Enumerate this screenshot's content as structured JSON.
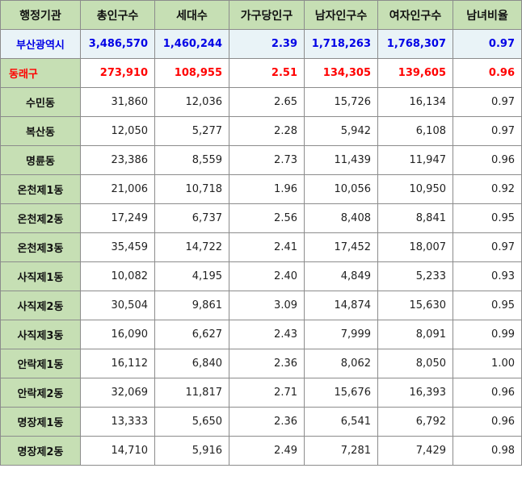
{
  "headers": [
    "행정기관",
    "총인구수",
    "세대수",
    "가구당인구",
    "남자인구수",
    "여자인구수",
    "남녀비율"
  ],
  "rows": [
    [
      "부산광역시",
      "3,486,570",
      "1,460,244",
      "2.39",
      "1,718,263",
      "1,768,307",
      "0.97"
    ],
    [
      "동래구",
      "273,910",
      "108,955",
      "2.51",
      "134,305",
      "139,605",
      "0.96"
    ],
    [
      "수민동",
      "31,860",
      "12,036",
      "2.65",
      "15,726",
      "16,134",
      "0.97"
    ],
    [
      "복산동",
      "12,050",
      "5,277",
      "2.28",
      "5,942",
      "6,108",
      "0.97"
    ],
    [
      "명륜동",
      "23,386",
      "8,559",
      "2.73",
      "11,439",
      "11,947",
      "0.96"
    ],
    [
      "온천제1동",
      "21,006",
      "10,718",
      "1.96",
      "10,056",
      "10,950",
      "0.92"
    ],
    [
      "온천제2동",
      "17,249",
      "6,737",
      "2.56",
      "8,408",
      "8,841",
      "0.95"
    ],
    [
      "온천제3동",
      "35,459",
      "14,722",
      "2.41",
      "17,452",
      "18,007",
      "0.97"
    ],
    [
      "사직제1동",
      "10,082",
      "4,195",
      "2.40",
      "4,849",
      "5,233",
      "0.93"
    ],
    [
      "사직제2동",
      "30,504",
      "9,861",
      "3.09",
      "14,874",
      "15,630",
      "0.95"
    ],
    [
      "사직제3동",
      "16,090",
      "6,627",
      "2.43",
      "7,999",
      "8,091",
      "0.99"
    ],
    [
      "안락제1동",
      "16,112",
      "6,840",
      "2.36",
      "8,062",
      "8,050",
      "1.00"
    ],
    [
      "안락제2동",
      "32,069",
      "11,817",
      "2.71",
      "15,676",
      "16,393",
      "0.96"
    ],
    [
      "명장제1동",
      "13,333",
      "5,650",
      "2.36",
      "6,541",
      "6,792",
      "0.96"
    ],
    [
      "명장제2동",
      "14,710",
      "5,916",
      "2.49",
      "7,281",
      "7,429",
      "0.98"
    ]
  ]
}
